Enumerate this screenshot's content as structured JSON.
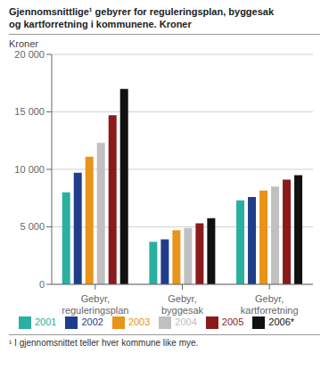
{
  "chart_data": {
    "type": "bar",
    "title": "Gjennomsnittlige¹ gebyrer for reguleringsplan, byggesak\nog kartforretning i kommunene. Kroner",
    "ylabel": "Kroner",
    "footnote": "¹ I gjennomsnittet teller hver kommune like mye.",
    "categories": [
      "Gebyr,\nreguleringsplan",
      "Gebyr,\nbyggesak",
      "Gebyr,\nkartforretning"
    ],
    "series": [
      {
        "name": "2001",
        "color": "#2ab0a0",
        "values": [
          8000,
          3700,
          7300
        ]
      },
      {
        "name": "2002",
        "color": "#1f3d8a",
        "values": [
          9700,
          3900,
          7600
        ]
      },
      {
        "name": "2003",
        "color": "#e8931a",
        "values": [
          11100,
          4700,
          8150
        ]
      },
      {
        "name": "2004",
        "color": "#c0c0c0",
        "values": [
          12300,
          4900,
          8500
        ]
      },
      {
        "name": "2005",
        "color": "#8b1a1a",
        "values": [
          14700,
          5300,
          9100
        ]
      },
      {
        "name": "2006*",
        "color": "#111111",
        "values": [
          17000,
          5750,
          9500
        ]
      }
    ],
    "ylim": [
      0,
      20000
    ],
    "yticks": [
      0,
      {
        "value": 5000,
        "label": "5 000"
      },
      {
        "value": 10000,
        "label": "10 000"
      },
      {
        "value": 15000,
        "label": "15 000"
      },
      {
        "value": 20000,
        "label": "20 000"
      }
    ],
    "grid": true,
    "legend": "bottom"
  }
}
